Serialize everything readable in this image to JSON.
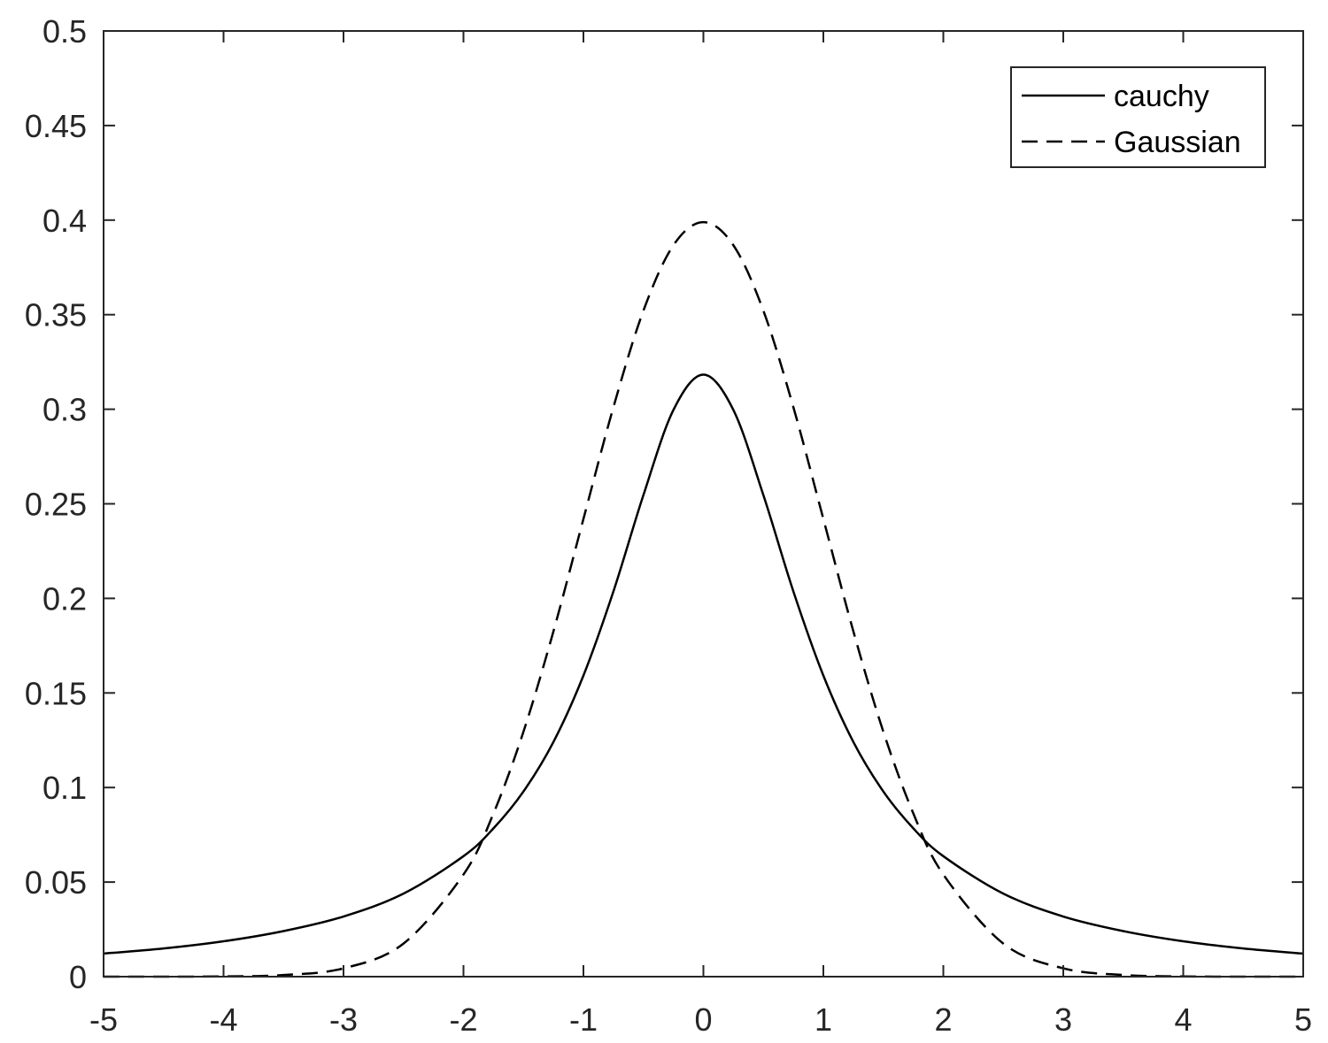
{
  "chart_data": {
    "type": "line",
    "xlim": [
      -5,
      5
    ],
    "ylim": [
      0,
      0.5
    ],
    "x_ticks": [
      "-5",
      "-4",
      "-3",
      "-2",
      "-1",
      "0",
      "1",
      "2",
      "3",
      "4",
      "5"
    ],
    "y_ticks": [
      "0",
      "0.05",
      "0.1",
      "0.15",
      "0.2",
      "0.25",
      "0.3",
      "0.35",
      "0.4",
      "0.45",
      "0.5"
    ],
    "grid": false,
    "legend_position": "top-right",
    "series": [
      {
        "name": "cauchy",
        "style": "solid",
        "color": "#000000",
        "x": [
          -5,
          -4.5,
          -4,
          -3.5,
          -3,
          -2.5,
          -2,
          -1.75,
          -1.5,
          -1.25,
          -1,
          -0.75,
          -0.5,
          -0.25,
          0,
          0.25,
          0.5,
          0.75,
          1,
          1.25,
          1.5,
          1.75,
          2,
          2.5,
          3,
          3.5,
          4,
          4.5,
          5
        ],
        "y": [
          0.0122,
          0.0149,
          0.0187,
          0.0241,
          0.0318,
          0.0439,
          0.0637,
          0.0784,
          0.0979,
          0.1241,
          0.1592,
          0.2037,
          0.2546,
          0.2996,
          0.3183,
          0.2996,
          0.2546,
          0.2037,
          0.1592,
          0.1241,
          0.0979,
          0.0784,
          0.0637,
          0.0439,
          0.0318,
          0.0241,
          0.0187,
          0.0149,
          0.0122
        ]
      },
      {
        "name": "Gaussian",
        "style": "dashed",
        "color": "#000000",
        "x": [
          -5,
          -4.5,
          -4,
          -3.5,
          -3,
          -2.5,
          -2,
          -1.75,
          -1.5,
          -1.25,
          -1,
          -0.75,
          -0.5,
          -0.25,
          0,
          0.25,
          0.5,
          0.75,
          1,
          1.25,
          1.5,
          1.75,
          2,
          2.5,
          3,
          3.5,
          4,
          4.5,
          5
        ],
        "y": [
          1.5e-06,
          1.6e-05,
          0.000134,
          0.00087,
          0.0044,
          0.0175,
          0.054,
          0.0863,
          0.1295,
          0.1826,
          0.242,
          0.3011,
          0.3521,
          0.3867,
          0.3989,
          0.3867,
          0.3521,
          0.3011,
          0.242,
          0.1826,
          0.1295,
          0.0863,
          0.054,
          0.0175,
          0.0044,
          0.00087,
          0.000134,
          1.6e-05,
          1.5e-06
        ]
      }
    ]
  }
}
